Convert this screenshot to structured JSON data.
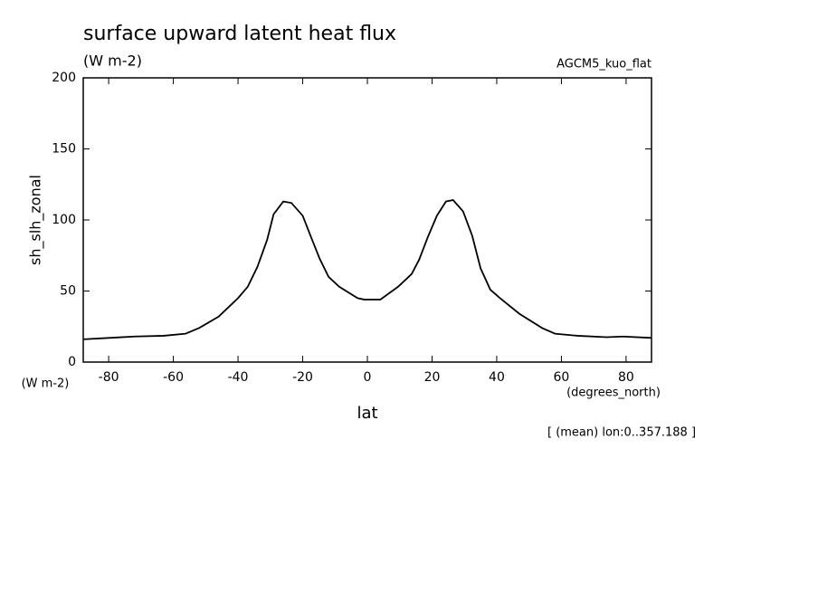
{
  "chart_data": {
    "type": "line",
    "title": "surface upward latent heat flux",
    "subtitle": "(W m-2)",
    "model_label": "AGCM5_kuo_flat",
    "y_label": "sh_slh_zonal",
    "y_unit": "(W m-2)",
    "x_label": "lat",
    "x_unit": "(degrees_north)",
    "annotation": "[ (mean) lon:0..357.188 ]",
    "x": [
      -88,
      -80,
      -72,
      -63,
      -56.2,
      -52,
      -46,
      -40,
      -37,
      -34,
      -31,
      -29,
      -26,
      -23.5,
      -20,
      -17.6,
      -14.8,
      -12,
      -8.7,
      -3,
      -1,
      4,
      9.5,
      13.7,
      16,
      18.7,
      21.5,
      24.3,
      26.5,
      29.6,
      32.4,
      35,
      38,
      41,
      47,
      54,
      58,
      65,
      74,
      79,
      88
    ],
    "series": [
      {
        "color": "#000000",
        "values": [
          16,
          17,
          18,
          18.5,
          20,
          24,
          32,
          45,
          53,
          67,
          86,
          104,
          113,
          112,
          103,
          89,
          73,
          60,
          53,
          45,
          44,
          44,
          53,
          62,
          72,
          88,
          103,
          113,
          114,
          106,
          89,
          66,
          51,
          45,
          34,
          24,
          20,
          18.5,
          17.5,
          18,
          17
        ]
      }
    ],
    "xlim": [
      -87.86,
      87.86
    ],
    "xticks": [
      -80,
      -60,
      -40,
      -20,
      0,
      20,
      40,
      60,
      80
    ],
    "ylim": [
      0,
      200
    ],
    "yticks": [
      0,
      50,
      100,
      150,
      200
    ]
  }
}
